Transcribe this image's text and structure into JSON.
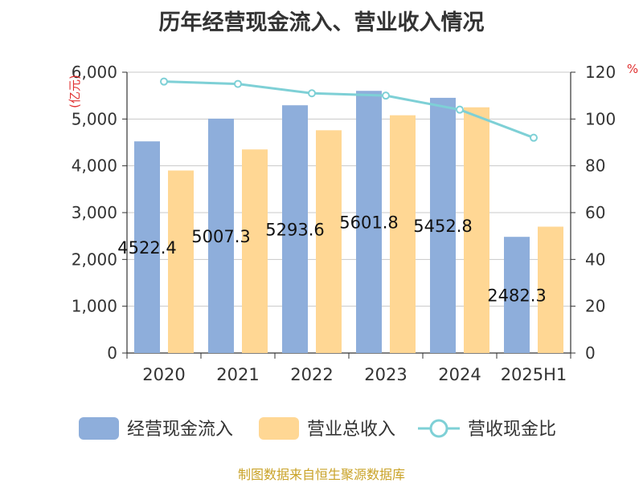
{
  "chart_data": {
    "type": "bar",
    "title": "历年经营现金流入、营业收入情况",
    "categories": [
      "2020",
      "2021",
      "2022",
      "2023",
      "2024",
      "2025H1"
    ],
    "series": [
      {
        "name": "经营现金流入",
        "type": "bar",
        "axis": "left",
        "color": "#8eaedb",
        "values": [
          4522.4,
          5007.3,
          5293.6,
          5601.8,
          5452.8,
          2482.3
        ],
        "labels": [
          "4522.4",
          "5007.3",
          "5293.6",
          "5601.8",
          "5452.8",
          "2482.3"
        ]
      },
      {
        "name": "营业总收入",
        "type": "bar",
        "axis": "left",
        "color": "#ffd794",
        "values": [
          3900,
          4350,
          4760,
          5080,
          5250,
          2700
        ]
      },
      {
        "name": "营收现金比",
        "type": "line",
        "axis": "right",
        "color": "#7ed0d6",
        "values": [
          116,
          115,
          111,
          110,
          104,
          92
        ]
      }
    ],
    "ylabel": "亿元",
    "y2label": "%",
    "ylim": [
      0,
      6000
    ],
    "y2lim": [
      0,
      120
    ],
    "yticks": [
      "0",
      "1,000",
      "2,000",
      "3,000",
      "4,000",
      "5,000",
      "6,000"
    ],
    "y2ticks": [
      "0",
      "20",
      "40",
      "60",
      "80",
      "100",
      "120"
    ],
    "grid": true,
    "legend_position": "bottom"
  },
  "source_text": "制图数据来自恒生聚源数据库"
}
